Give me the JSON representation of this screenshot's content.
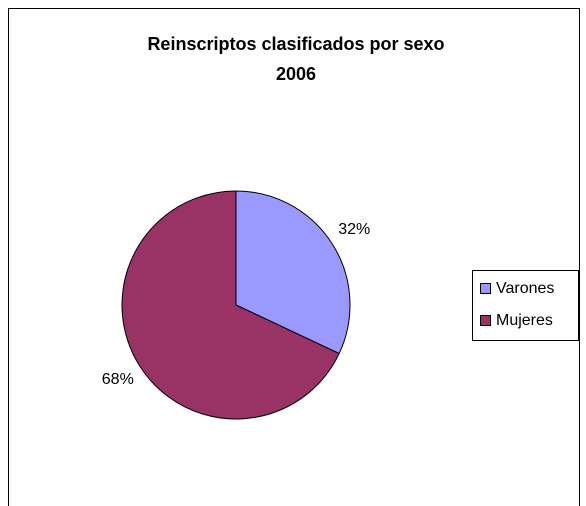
{
  "chart_data": {
    "type": "pie",
    "title": [
      "Reinscriptos clasificados por sexo",
      "2006"
    ],
    "categories": [
      "Varones",
      "Mujeres"
    ],
    "values": [
      32,
      68
    ],
    "value_labels": [
      "32%",
      "68%"
    ],
    "colors": [
      "#9999ff",
      "#993366"
    ],
    "legend": "right"
  }
}
